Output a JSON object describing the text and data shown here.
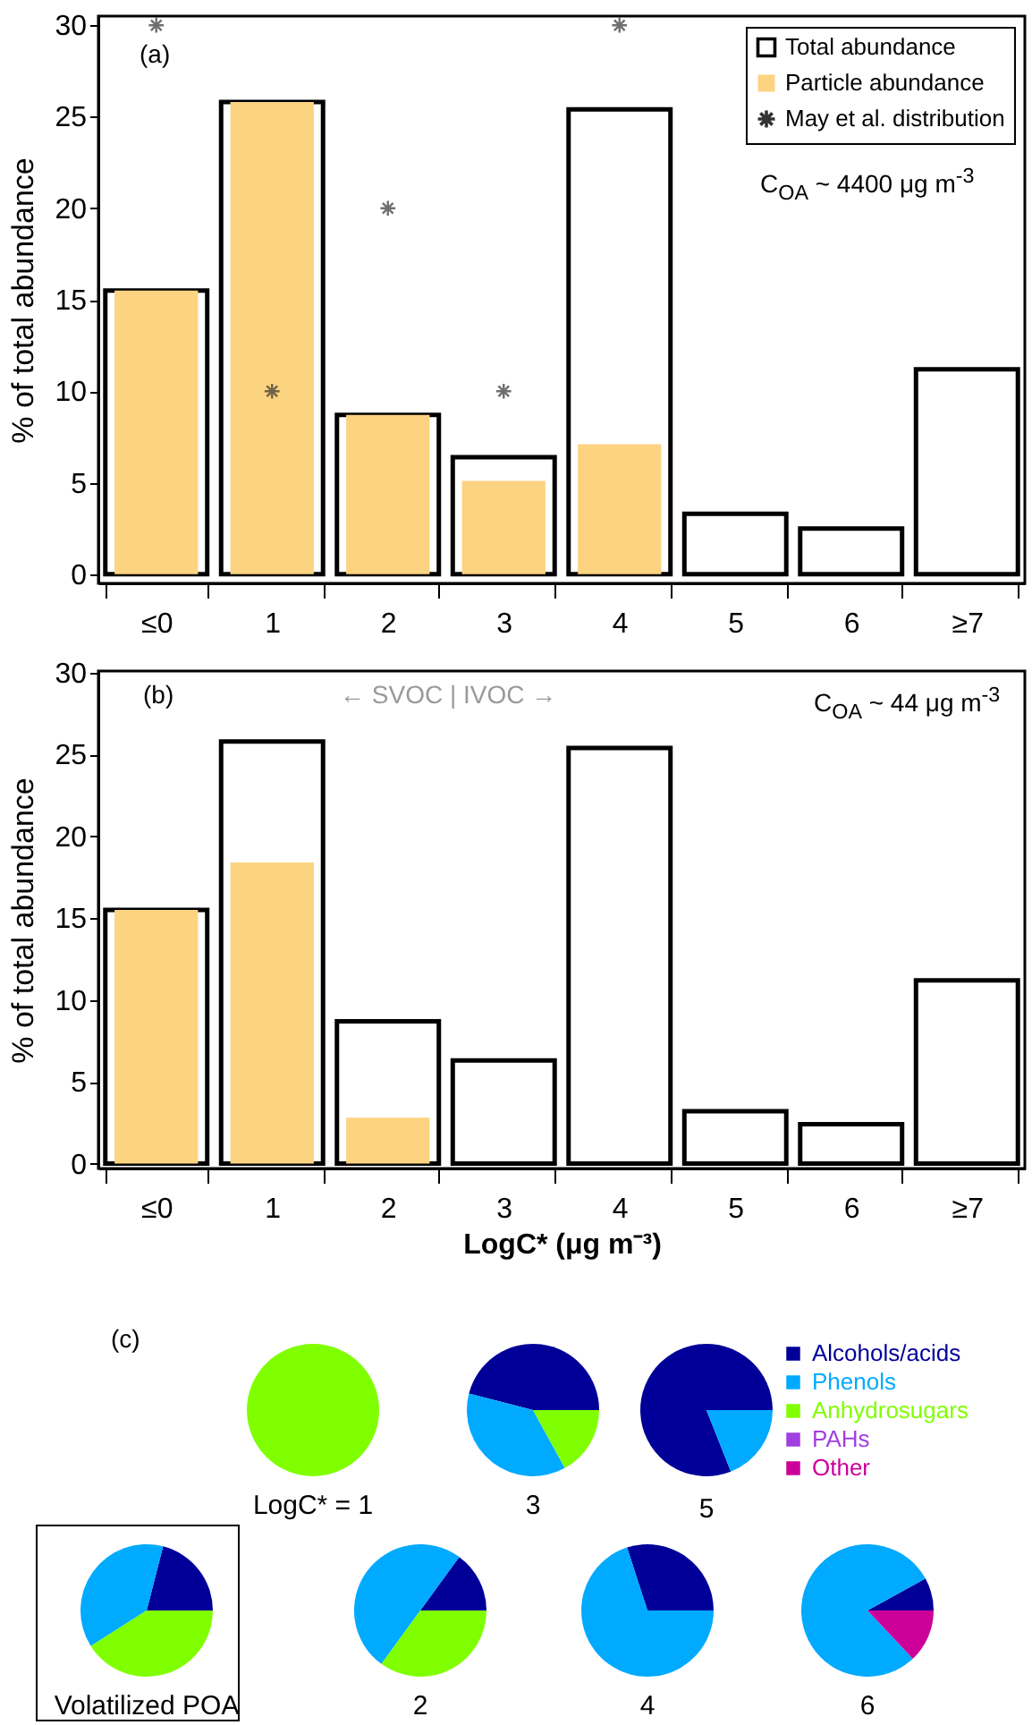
{
  "chart_data": [
    {
      "type": "bar",
      "categories": [
        "≤0",
        "1",
        "2",
        "3",
        "4",
        "5",
        "6",
        "≥7"
      ],
      "ylabel": "% of total abundance",
      "ylim": [
        -0.5,
        30.5
      ],
      "yticks": [
        0,
        5,
        10,
        15,
        20,
        25,
        30
      ],
      "legend": "top right",
      "annotations": [
        "(a)",
        "C$_{OA}$ ~ 4400 μg m$^{-3}$"
      ],
      "series": [
        {
          "name": "Total abundance",
          "color": "#000000",
          "values": [
            15.5,
            25.8,
            8.7,
            6.4,
            25.4,
            3.3,
            2.5,
            11.2
          ]
        },
        {
          "name": "Particle abundance",
          "color": "#fcd380",
          "values": [
            15.5,
            25.8,
            8.7,
            5.1,
            7.1,
            null,
            null,
            null
          ]
        },
        {
          "name": "May et al. distribution",
          "type": "scatter",
          "marker": "cross",
          "color": "#333333",
          "values": [
            30,
            10,
            20,
            10,
            30,
            null,
            null,
            null
          ]
        }
      ]
    },
    {
      "type": "bar",
      "categories": [
        "≤0",
        "1",
        "2",
        "3",
        "4",
        "5",
        "6",
        "≥7"
      ],
      "ylabel": "% of total abundance",
      "xlabel": "LogC* (μg m⁻³)",
      "ylim": [
        -0.3,
        30.1
      ],
      "yticks": [
        0,
        5,
        10,
        15,
        20,
        25,
        30
      ],
      "annotations": [
        "(b)",
        "← SVOC | IVOC →",
        "C$_{OA}$ ~ 44 μg m$^{-3}$"
      ],
      "series": [
        {
          "color": "#000000",
          "values": [
            15.5,
            25.8,
            8.7,
            6.3,
            25.4,
            3.2,
            2.4,
            11.2
          ]
        },
        {
          "color": "#fcd380",
          "values": [
            15.5,
            18.4,
            2.8,
            null,
            null,
            null,
            null,
            null
          ]
        }
      ]
    },
    {
      "type": "pie",
      "legend": "top right",
      "annotations": [
        "(c)"
      ],
      "categories": [
        "Alcohols/acids",
        "Phenols",
        "Anhydrosugars",
        "PAHs",
        "Other"
      ],
      "colors": [
        "#000099",
        "#00aaff",
        "#80ff00",
        "#a040e0",
        "#cc0099"
      ],
      "series": [
        {
          "name": "LogC* = 1",
          "values": [
            0,
            0,
            100,
            0,
            0
          ]
        },
        {
          "name": "3",
          "values": [
            46,
            37,
            17,
            0,
            0
          ]
        },
        {
          "name": "5",
          "values": [
            81,
            19,
            0,
            0,
            0
          ]
        },
        {
          "name": "Volatilized POA",
          "values": [
            21,
            38,
            41,
            0,
            0
          ]
        },
        {
          "name": "2",
          "values": [
            15,
            50,
            35,
            0,
            0
          ]
        },
        {
          "name": "4",
          "values": [
            30,
            70,
            0,
            0,
            0
          ]
        },
        {
          "name": "6",
          "values": [
            8,
            79,
            0,
            0,
            13
          ]
        }
      ]
    }
  ]
}
